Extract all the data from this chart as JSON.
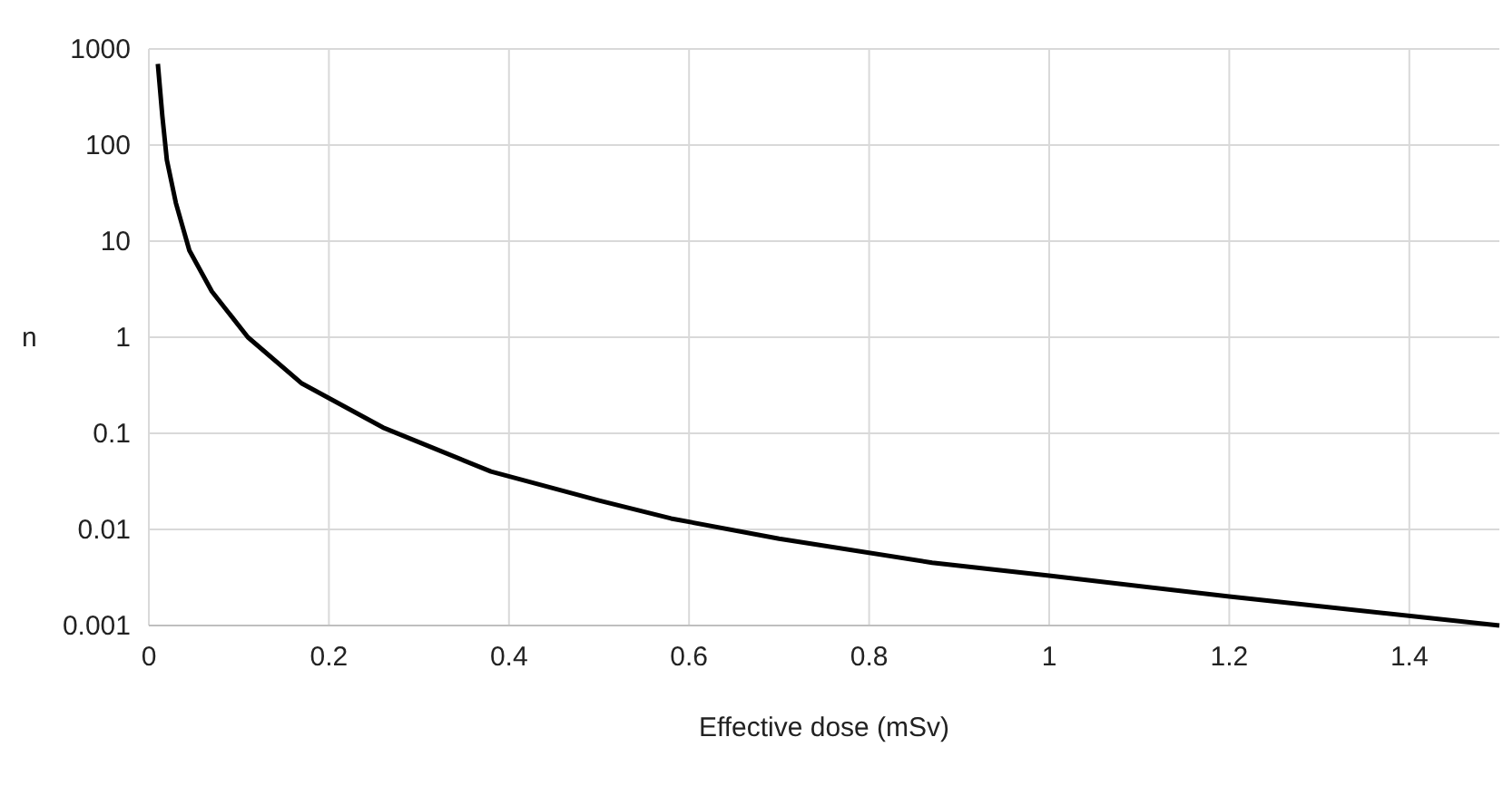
{
  "chart_data": {
    "type": "line",
    "xlabel": "Effective dose (mSv)",
    "ylabel": "n",
    "log": "y",
    "grid": true,
    "marker": "none",
    "line_style": "solid",
    "xlim": [
      0,
      1.5
    ],
    "xticks": [
      0,
      0.2,
      0.4,
      0.6,
      0.8,
      1,
      1.2,
      1.4
    ],
    "ylim": [
      0.001,
      1000
    ],
    "yticks": [
      0.001,
      0.01,
      0.1,
      1,
      10,
      100,
      1000
    ],
    "series": [
      {
        "color": "#000000",
        "x": [
          0.01,
          0.015,
          0.02,
          0.03,
          0.045,
          0.07,
          0.11,
          0.17,
          0.26,
          0.38,
          0.5,
          0.58,
          0.7,
          0.87,
          1.0,
          1.2,
          1.5
        ],
        "values": [
          700,
          200,
          70,
          25,
          8,
          3,
          1,
          0.33,
          0.115,
          0.04,
          0.02,
          0.013,
          0.008,
          0.0045,
          0.0033,
          0.002,
          0.001
        ]
      }
    ]
  }
}
